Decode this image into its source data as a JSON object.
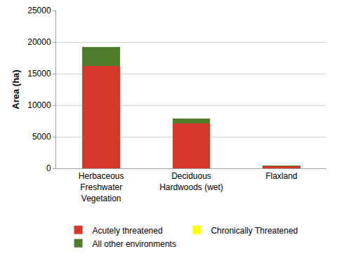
{
  "chart_data": {
    "type": "bar",
    "stacked": true,
    "y_label": "Area (ha)",
    "categories": [
      "Herbaceous Freshwater Vegetation",
      "Deciduous Hardwoods (wet)",
      "Flaxland"
    ],
    "series": [
      {
        "name": "Acutely threatened",
        "color": "#d7362a",
        "values": [
          16200,
          7100,
          300
        ]
      },
      {
        "name": "Chronically Threatened",
        "color": "#ffff00",
        "values": [
          0,
          0,
          0
        ]
      },
      {
        "name": "All other environments",
        "color": "#4e7d2b",
        "values": [
          3000,
          800,
          150
        ]
      }
    ],
    "ylim": [
      0,
      25000
    ],
    "yticks": [
      0,
      5000,
      10000,
      15000,
      20000,
      25000
    ],
    "grid": true,
    "legend": "bottom"
  }
}
